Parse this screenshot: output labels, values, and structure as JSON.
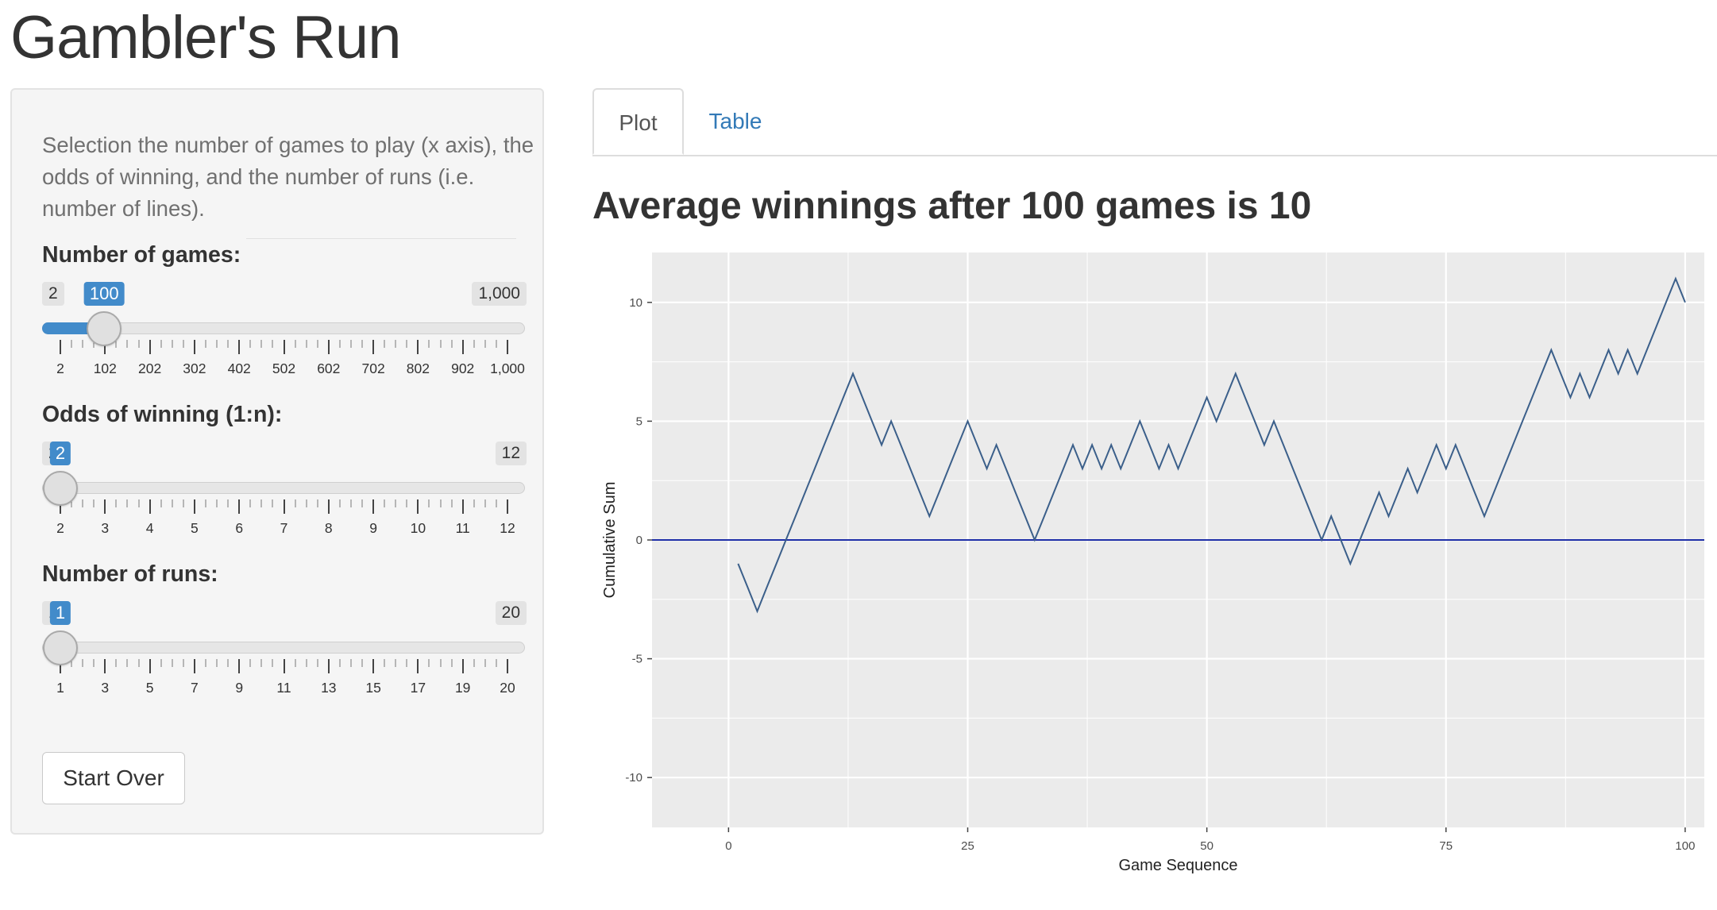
{
  "app": {
    "title": "Gambler's Run"
  },
  "sidebar": {
    "description": "Selection the number of games to play (x axis), the odds of winning, and the number of runs (i.e. number of lines).",
    "games_slider": {
      "label": "Number of games:",
      "min": 2,
      "max": 1000,
      "value": 100,
      "min_label": "2",
      "max_label": "1,000",
      "value_label": "100",
      "ticks": [
        "2",
        "102",
        "202",
        "302",
        "402",
        "502",
        "602",
        "702",
        "802",
        "902",
        "1,000"
      ]
    },
    "odds_slider": {
      "label": "Odds of winning (1:n):",
      "min": 2,
      "max": 12,
      "value": 2,
      "min_label": "2",
      "max_label": "12",
      "value_label": "2",
      "ticks": [
        "2",
        "3",
        "4",
        "5",
        "6",
        "7",
        "8",
        "9",
        "10",
        "11",
        "12"
      ]
    },
    "runs_slider": {
      "label": "Number of runs:",
      "min": 1,
      "max": 20,
      "value": 1,
      "min_label": "1",
      "max_label": "20",
      "value_label": "1",
      "ticks": [
        "1",
        "3",
        "5",
        "7",
        "9",
        "11",
        "13",
        "15",
        "17",
        "19",
        "20"
      ]
    },
    "start_over_label": "Start Over"
  },
  "tabs": [
    {
      "label": "Plot",
      "active": true
    },
    {
      "label": "Table",
      "active": false
    }
  ],
  "plot": {
    "heading": "Average winnings after 100 games is 10"
  },
  "colors": {
    "accent": "#428bca",
    "line": "#3b5f8a",
    "zero_line": "#1f2fa8",
    "panel": "#ebebeb",
    "link": "#337ab7"
  },
  "chart_data": {
    "type": "line",
    "title": "",
    "xlabel": "Game Sequence",
    "ylabel": "Cumulative Sum",
    "xlim": [
      -8,
      102
    ],
    "ylim": [
      -12.1,
      12.1
    ],
    "xticks": [
      "0",
      "25",
      "50",
      "75",
      "100"
    ],
    "yticks": [
      "-10",
      "-5",
      "0",
      "5",
      "10"
    ],
    "hline": 0,
    "grid": true,
    "series": [
      {
        "x": [
          1,
          2,
          3,
          4,
          5,
          6,
          7,
          8,
          9,
          10,
          11,
          12,
          13,
          14,
          15,
          16,
          17,
          18,
          19,
          20,
          21,
          22,
          23,
          24,
          25,
          26,
          27,
          28,
          29,
          30,
          31,
          32,
          33,
          34,
          35,
          36,
          37,
          38,
          39,
          40,
          41,
          42,
          43,
          44,
          45,
          46,
          47,
          48,
          49,
          50,
          51,
          52,
          53,
          54,
          55,
          56,
          57,
          58,
          59,
          60,
          61,
          62,
          63,
          64,
          65,
          66,
          67,
          68,
          69,
          70,
          71,
          72,
          73,
          74,
          75,
          76,
          77,
          78,
          79,
          80,
          81,
          82,
          83,
          84,
          85,
          86,
          87,
          88,
          89,
          90,
          91,
          92,
          93,
          94,
          95,
          96,
          97,
          98,
          99,
          100
        ],
        "y": [
          -1,
          -2,
          -3,
          -2,
          -1,
          0,
          1,
          2,
          3,
          4,
          5,
          6,
          7,
          6,
          5,
          4,
          5,
          4,
          3,
          2,
          1,
          2,
          3,
          4,
          5,
          4,
          3,
          4,
          3,
          2,
          1,
          0,
          1,
          2,
          3,
          4,
          3,
          4,
          3,
          4,
          3,
          4,
          5,
          4,
          3,
          4,
          3,
          4,
          5,
          6,
          5,
          6,
          7,
          6,
          5,
          4,
          5,
          4,
          3,
          2,
          1,
          0,
          1,
          0,
          -1,
          0,
          1,
          2,
          1,
          2,
          3,
          2,
          3,
          4,
          3,
          4,
          3,
          2,
          1,
          2,
          3,
          4,
          5,
          6,
          7,
          8,
          7,
          6,
          7,
          6,
          7,
          8,
          7,
          8,
          7,
          8,
          9,
          10,
          11,
          10
        ]
      }
    ]
  }
}
